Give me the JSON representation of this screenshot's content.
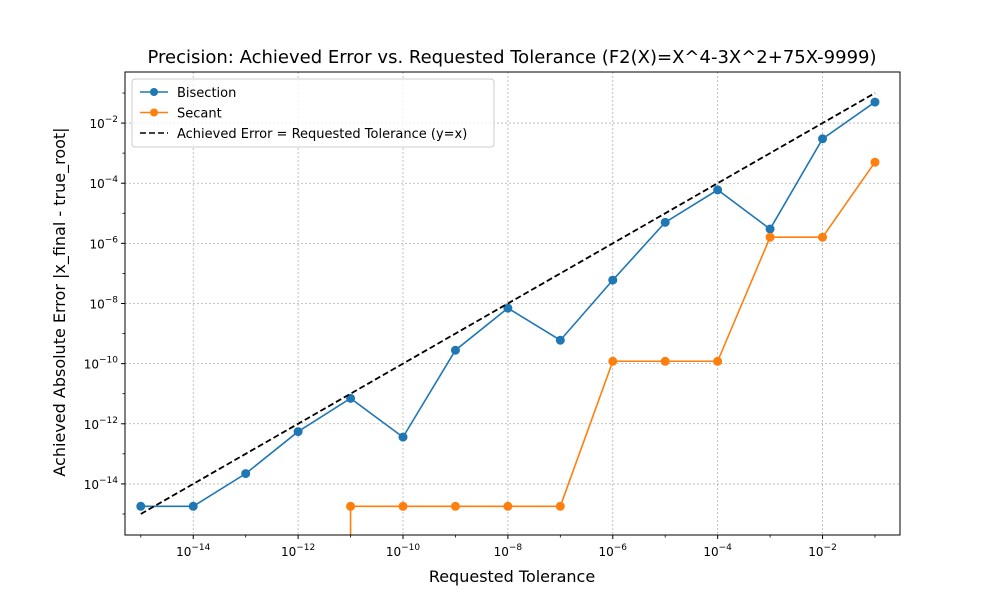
{
  "chart_data": {
    "type": "line",
    "title": "Precision: Achieved Error vs. Requested Tolerance (F2(X)=X^4-3X^2+75X-9999)",
    "xlabel": "Requested Tolerance",
    "ylabel": "Achieved Absolute Error |x_final - true_root|",
    "xscale": "log",
    "yscale": "log",
    "xlim": [
      5e-16,
      0.3
    ],
    "ylim": [
      2e-16,
      0.5
    ],
    "grid": true,
    "legend_position": "upper left",
    "x_ticks": [
      {
        "value": 1e-14,
        "label": "10^-14"
      },
      {
        "value": 1e-12,
        "label": "10^-12"
      },
      {
        "value": 1e-10,
        "label": "10^-10"
      },
      {
        "value": 1e-08,
        "label": "10^-8"
      },
      {
        "value": 1e-06,
        "label": "10^-6"
      },
      {
        "value": 0.0001,
        "label": "10^-4"
      },
      {
        "value": 0.01,
        "label": "10^-2"
      }
    ],
    "y_ticks": [
      {
        "value": 1e-14,
        "label": "10^-14"
      },
      {
        "value": 1e-12,
        "label": "10^-12"
      },
      {
        "value": 1e-10,
        "label": "10^-10"
      },
      {
        "value": 1e-08,
        "label": "10^-8"
      },
      {
        "value": 1e-06,
        "label": "10^-6"
      },
      {
        "value": 0.0001,
        "label": "10^-4"
      },
      {
        "value": 0.01,
        "label": "10^-2"
      }
    ],
    "series": [
      {
        "name": "Bisection",
        "color": "#1f77b4",
        "marker": "circle",
        "x": [
          1e-15,
          1e-14,
          1e-13,
          1e-12,
          1e-11,
          1e-10,
          1e-09,
          1e-08,
          1e-07,
          1e-06,
          1e-05,
          0.0001,
          0.001,
          0.01,
          0.1
        ],
        "y": [
          1.8e-15,
          1.8e-15,
          2.2e-14,
          5.5e-13,
          7e-12,
          3.6e-13,
          2.8e-10,
          7e-09,
          6e-10,
          6e-08,
          5e-06,
          6e-05,
          3e-06,
          0.003,
          0.05
        ]
      },
      {
        "name": "Secant",
        "color": "#ff7f0e",
        "marker": "circle",
        "x": [
          1e-11,
          1e-11,
          1e-10,
          1e-09,
          1e-08,
          1e-07,
          1e-06,
          1e-05,
          0.0001,
          0.001,
          0.01,
          0.1
        ],
        "y": [
          2e-16,
          1.8e-15,
          1.8e-15,
          1.8e-15,
          1.8e-15,
          1.8e-15,
          1.2e-10,
          1.2e-10,
          1.2e-10,
          1.6e-06,
          1.6e-06,
          0.0005
        ],
        "marker_from_index": 1
      },
      {
        "name": "Achieved Error = Requested Tolerance (y=x)",
        "color": "#000000",
        "linestyle": "dashed",
        "x": [
          1e-15,
          0.1
        ],
        "y": [
          1e-15,
          0.1
        ]
      }
    ]
  }
}
